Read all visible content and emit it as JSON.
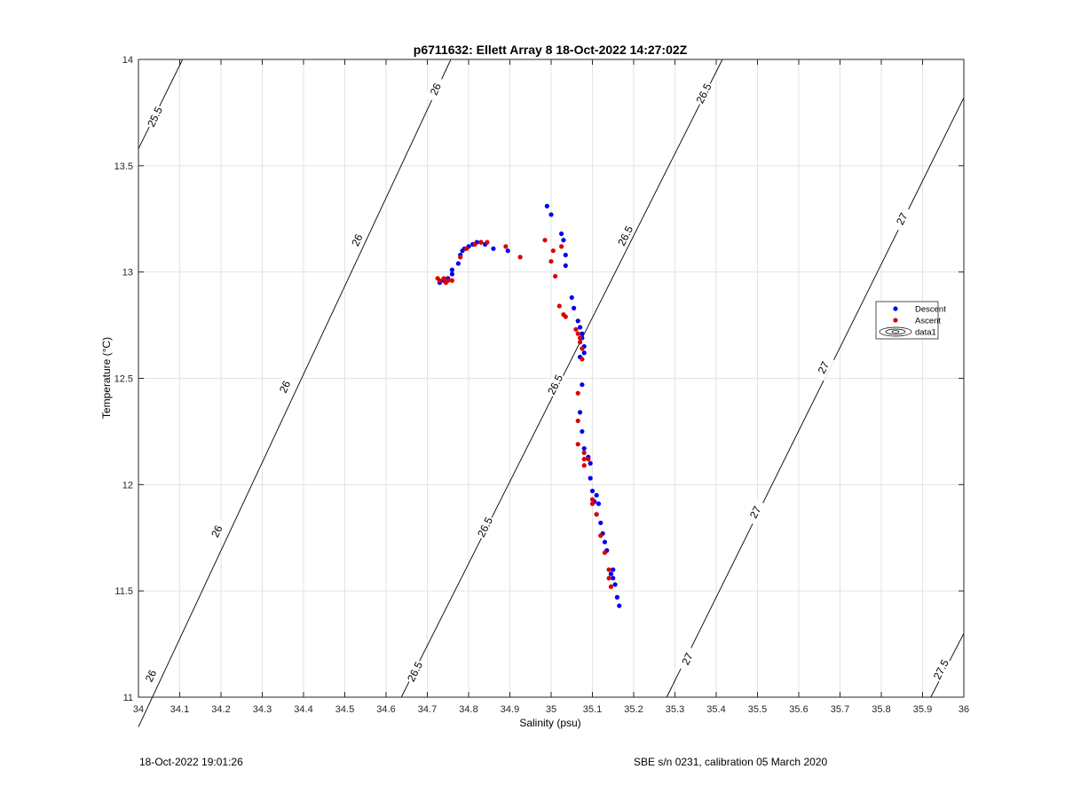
{
  "chart_data": {
    "type": "scatter",
    "title": "p6711632: Ellett Array 8 18-Oct-2022 14:27:02Z",
    "xlabel": "Salinity (psu)",
    "ylabel": "Temperature (°C)",
    "xlim": [
      34,
      36
    ],
    "ylim": [
      11,
      14
    ],
    "xticks": [
      "34",
      "34.1",
      "34.2",
      "34.3",
      "34.4",
      "34.5",
      "34.6",
      "34.7",
      "34.8",
      "34.9",
      "35",
      "35.1",
      "35.2",
      "35.3",
      "35.4",
      "35.5",
      "35.6",
      "35.7",
      "35.8",
      "35.9",
      "36"
    ],
    "yticks": [
      "11",
      "11.5",
      "12",
      "12.5",
      "13",
      "13.5",
      "14"
    ],
    "grid": true,
    "legend_position": "right",
    "legend": [
      {
        "label": "Descent",
        "color": "#0000ee"
      },
      {
        "label": "Ascent",
        "color": "#dd0000"
      },
      {
        "label": "data1",
        "color": "#000000"
      }
    ],
    "contours": [
      {
        "label": "25.5",
        "x1": 34.0,
        "y1": 13.58,
        "x2": 34.107,
        "y2": 14.0,
        "label_positions": [
          [
            34.04,
            13.73
          ]
        ]
      },
      {
        "label": "26",
        "x1": 34.0,
        "y1": 10.86,
        "x2": 34.757,
        "y2": 14.0,
        "label_positions": [
          [
            34.03,
            11.1
          ],
          [
            34.19,
            11.78
          ],
          [
            34.355,
            12.46
          ],
          [
            34.53,
            13.15
          ],
          [
            34.72,
            13.86
          ]
        ]
      },
      {
        "label": "26.5",
        "x1": 34.637,
        "y1": 11.0,
        "x2": 35.415,
        "y2": 14.0,
        "label_positions": [
          [
            34.67,
            11.12
          ],
          [
            34.84,
            11.8
          ],
          [
            35.01,
            12.47
          ],
          [
            35.18,
            13.17
          ],
          [
            35.37,
            13.84
          ]
        ]
      },
      {
        "label": "27",
        "x1": 35.28,
        "y1": 11.0,
        "x2": 36.0,
        "y2": 13.82,
        "label_positions": [
          [
            35.33,
            11.18
          ],
          [
            35.495,
            11.87
          ],
          [
            35.66,
            12.55
          ],
          [
            35.85,
            13.25
          ]
        ]
      },
      {
        "label": "27.5",
        "x1": 35.92,
        "y1": 11.0,
        "x2": 36.0,
        "y2": 11.3,
        "label_positions": [
          [
            35.945,
            11.13
          ]
        ]
      }
    ],
    "series": [
      {
        "name": "Descent",
        "color": "#0000ee",
        "points": [
          [
            34.99,
            13.31
          ],
          [
            35.0,
            13.27
          ],
          [
            35.025,
            13.18
          ],
          [
            35.03,
            13.15
          ],
          [
            35.035,
            13.08
          ],
          [
            35.035,
            13.03
          ],
          [
            35.05,
            12.88
          ],
          [
            35.055,
            12.83
          ],
          [
            35.065,
            12.77
          ],
          [
            35.07,
            12.74
          ],
          [
            35.075,
            12.71
          ],
          [
            35.075,
            12.69
          ],
          [
            35.08,
            12.65
          ],
          [
            35.08,
            12.62
          ],
          [
            35.07,
            12.6
          ],
          [
            35.075,
            12.47
          ],
          [
            35.07,
            12.34
          ],
          [
            35.075,
            12.25
          ],
          [
            35.08,
            12.17
          ],
          [
            35.09,
            12.13
          ],
          [
            35.095,
            12.1
          ],
          [
            35.095,
            12.03
          ],
          [
            35.1,
            11.97
          ],
          [
            35.105,
            11.92
          ],
          [
            35.11,
            11.95
          ],
          [
            35.115,
            11.91
          ],
          [
            35.11,
            11.86
          ],
          [
            35.12,
            11.82
          ],
          [
            35.125,
            11.77
          ],
          [
            35.13,
            11.73
          ],
          [
            35.135,
            11.69
          ],
          [
            35.15,
            11.6
          ],
          [
            35.145,
            11.58
          ],
          [
            35.15,
            11.56
          ],
          [
            35.155,
            11.53
          ],
          [
            35.16,
            11.47
          ],
          [
            35.165,
            11.43
          ],
          [
            34.73,
            12.95
          ],
          [
            34.74,
            12.96
          ],
          [
            34.75,
            12.97
          ],
          [
            34.76,
            12.99
          ],
          [
            34.76,
            13.01
          ],
          [
            34.775,
            13.04
          ],
          [
            34.78,
            13.08
          ],
          [
            34.785,
            13.1
          ],
          [
            34.79,
            13.11
          ],
          [
            34.8,
            13.12
          ],
          [
            34.81,
            13.13
          ],
          [
            34.82,
            13.14
          ],
          [
            34.83,
            13.14
          ],
          [
            34.84,
            13.13
          ],
          [
            34.86,
            13.11
          ],
          [
            34.895,
            13.1
          ]
        ]
      },
      {
        "name": "Ascent",
        "color": "#dd0000",
        "points": [
          [
            34.985,
            13.15
          ],
          [
            35.0,
            13.05
          ],
          [
            35.005,
            13.1
          ],
          [
            35.01,
            12.98
          ],
          [
            35.025,
            13.12
          ],
          [
            35.02,
            12.84
          ],
          [
            35.03,
            12.8
          ],
          [
            35.035,
            12.79
          ],
          [
            35.06,
            12.73
          ],
          [
            35.065,
            12.71
          ],
          [
            35.07,
            12.69
          ],
          [
            35.07,
            12.67
          ],
          [
            35.075,
            12.64
          ],
          [
            35.075,
            12.59
          ],
          [
            35.065,
            12.43
          ],
          [
            35.065,
            12.3
          ],
          [
            35.065,
            12.19
          ],
          [
            35.08,
            12.15
          ],
          [
            35.08,
            12.12
          ],
          [
            35.08,
            12.09
          ],
          [
            35.09,
            12.12
          ],
          [
            35.1,
            11.93
          ],
          [
            35.1,
            11.91
          ],
          [
            35.11,
            11.86
          ],
          [
            35.12,
            11.76
          ],
          [
            35.13,
            11.68
          ],
          [
            35.14,
            11.6
          ],
          [
            35.14,
            11.56
          ],
          [
            35.145,
            11.52
          ],
          [
            34.725,
            12.97
          ],
          [
            34.73,
            12.96
          ],
          [
            34.74,
            12.97
          ],
          [
            34.75,
            12.96
          ],
          [
            34.745,
            12.95
          ],
          [
            34.76,
            12.96
          ],
          [
            34.78,
            13.07
          ],
          [
            34.795,
            13.11
          ],
          [
            34.815,
            13.13
          ],
          [
            34.83,
            13.14
          ],
          [
            34.845,
            13.14
          ],
          [
            34.89,
            13.12
          ],
          [
            34.925,
            13.07
          ]
        ]
      }
    ]
  },
  "footer": {
    "left": "18-Oct-2022 19:01:26",
    "right": "SBE s/n 0231, calibration 05 March 2020"
  }
}
